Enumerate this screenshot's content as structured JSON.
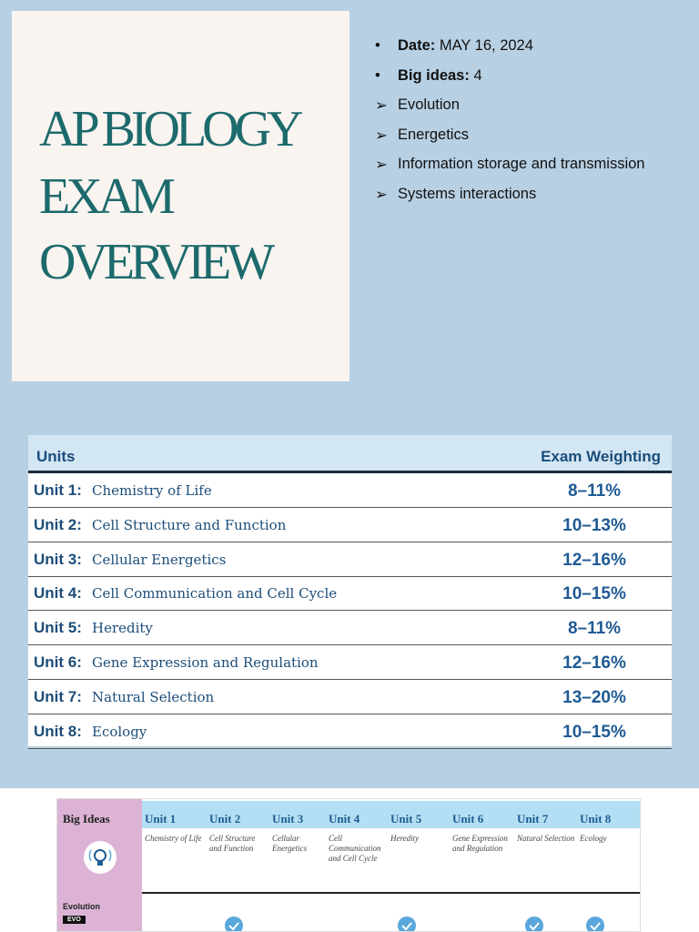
{
  "cover": {
    "title_lines": [
      "AP BIOLOGY",
      "EXAM",
      "OVERVIEW"
    ]
  },
  "facts": {
    "date_label": "Date:",
    "date": "MAY 16, 2024",
    "ideas_label": "Big ideas:",
    "ideas": "4",
    "items": [
      "Evolution",
      "Energetics",
      "Information storage and transmission",
      "Systems interactions"
    ]
  },
  "units_table": {
    "header": [
      "Units",
      "Exam Weighting"
    ],
    "rows": [
      [
        "Unit 1:",
        "Chemistry of Life",
        "8–11%"
      ],
      [
        "Unit 2:",
        "Cell Structure and Function",
        "10–13%"
      ],
      [
        "Unit 3:",
        "Cellular Energetics",
        "12–16%"
      ],
      [
        "Unit 4:",
        "Cell Communication and Cell Cycle",
        "10–15%"
      ],
      [
        "Unit 5:",
        "Heredity",
        "8–11%"
      ],
      [
        "Unit 6:",
        "Gene Expression and Regulation",
        "12–16%"
      ],
      [
        "Unit 7:",
        "Natural Selection",
        "13–20%"
      ],
      [
        "Unit 8:",
        "Ecology",
        "10–15%"
      ]
    ]
  },
  "big_ideas_table": {
    "corner": "Big Ideas",
    "columns": [
      [
        "Unit 1",
        "Chemistry of Life"
      ],
      [
        "Unit 2",
        "Cell Structure and Function"
      ],
      [
        "Unit 3",
        "Cellular Energetics"
      ],
      [
        "Unit 4",
        "Cell Communication and Cell Cycle"
      ],
      [
        "Unit 5",
        "Heredity"
      ],
      [
        "Unit 6",
        "Gene Expression and Regulation"
      ],
      [
        "Unit 7",
        "Natural Selection"
      ],
      [
        "Unit 8",
        "Ecology"
      ]
    ],
    "row_label": "Evolution",
    "row_badge": "EVO"
  }
}
